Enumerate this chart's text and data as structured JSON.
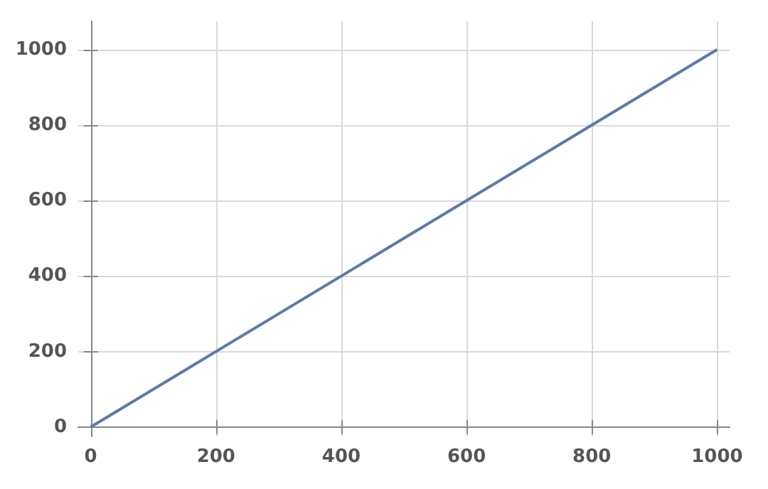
{
  "chart_data": {
    "type": "line",
    "x": [
      0,
      1000
    ],
    "series": [
      {
        "color": "#5b7ba3",
        "values": [
          0,
          1000
        ]
      }
    ],
    "xlim": [
      -20,
      1020
    ],
    "ylim": [
      -25,
      1075
    ],
    "xticks": [
      0,
      200,
      400,
      600,
      800,
      1000
    ],
    "yticks": [
      0,
      200,
      400,
      600,
      800,
      1000
    ],
    "grid": true,
    "marker": "none",
    "line_style": "solid"
  }
}
